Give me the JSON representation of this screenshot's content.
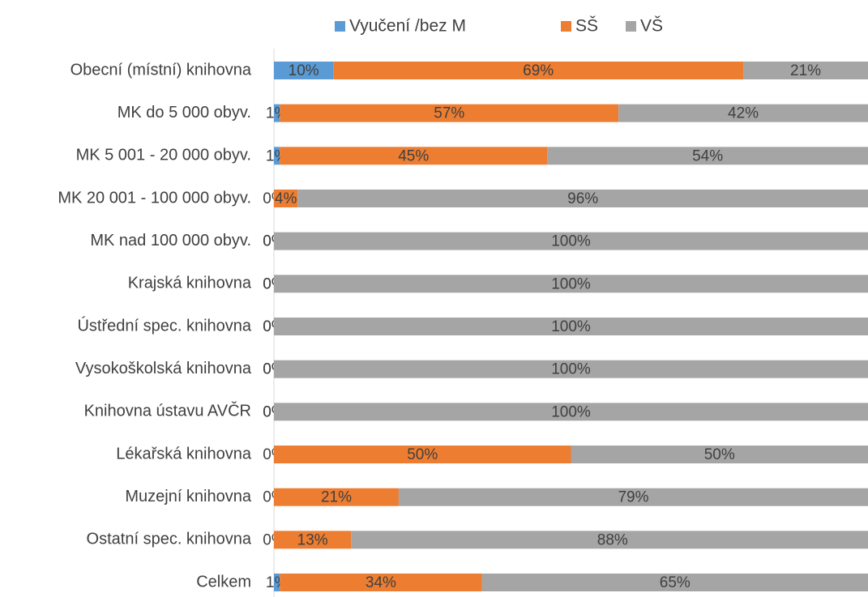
{
  "chart_data": {
    "type": "stacked-bar-horizontal",
    "categories": [
      "Obecní (místní) knihovna",
      "MK do 5 000 obyv.",
      "MK  5 001 - 20 000 obyv.",
      "MK 20 001 - 100 000 obyv.",
      "MK nad 100 000 obyv.",
      "Krajská knihovna",
      "Ústřední spec. knihovna",
      "Vysokoškolská knihovna",
      "Knihovna ústavu AVČR",
      "Lékařská knihovna",
      "Muzejní knihovna",
      "Ostatní spec. knihovna",
      "Celkem"
    ],
    "series": [
      {
        "name": "Vyučení /bez M",
        "color": "#5b9bd5",
        "values": [
          10,
          1,
          1,
          0,
          0,
          0,
          0,
          0,
          0,
          0,
          0,
          0,
          1
        ],
        "value_labels": [
          "10%",
          "1%",
          "1%",
          "0%",
          "0%",
          "0%",
          "0%",
          "0%",
          "0%",
          "0%",
          "0%",
          "0%",
          "1%"
        ]
      },
      {
        "name": "SŠ",
        "color": "#ed7d31",
        "values": [
          69,
          57,
          45,
          4,
          0,
          0,
          0,
          0,
          0,
          50,
          21,
          13,
          34
        ],
        "value_labels": [
          "69%",
          "57%",
          "45%",
          "4%",
          "0%",
          "0%",
          "0%",
          "0%",
          "0%",
          "50%",
          "21%",
          "13%",
          "34%"
        ]
      },
      {
        "name": "VŠ",
        "color": "#a5a5a5",
        "values": [
          21,
          42,
          54,
          96,
          100,
          100,
          100,
          100,
          100,
          50,
          79,
          88,
          65
        ],
        "value_labels": [
          "21%",
          "42%",
          "54%",
          "96%",
          "100%",
          "100%",
          "100%",
          "100%",
          "100%",
          "50%",
          "79%",
          "88%",
          "65%"
        ]
      }
    ],
    "xlim": [
      0,
      100
    ],
    "legend": "top"
  }
}
